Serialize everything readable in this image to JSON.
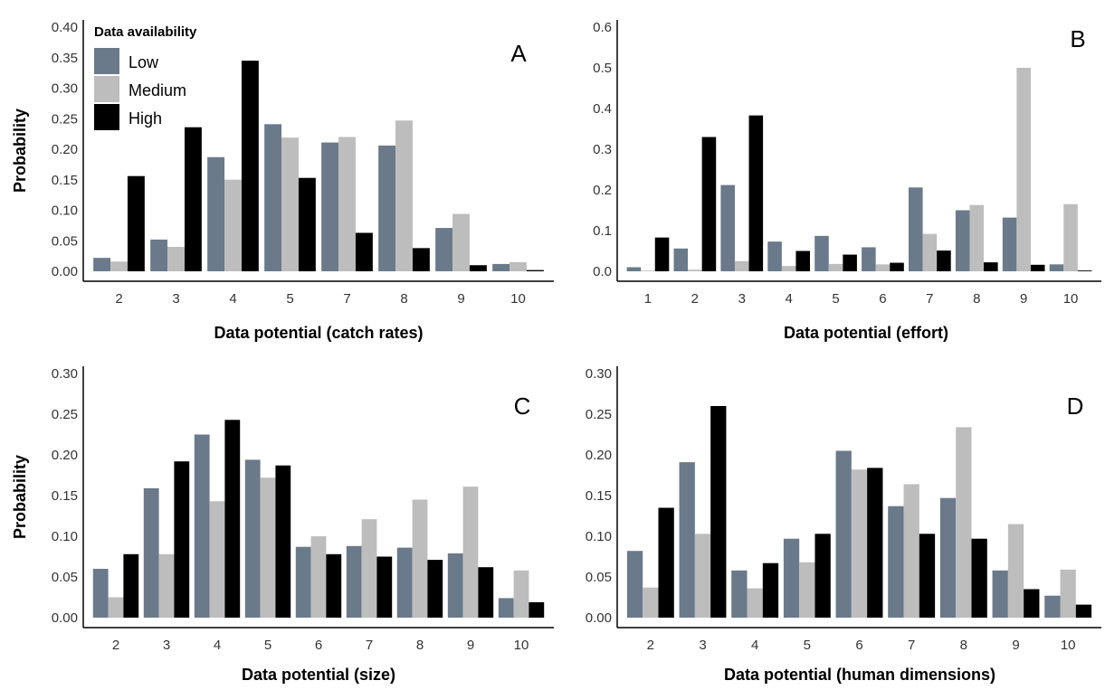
{
  "legend": {
    "title": "Data availability",
    "entries": [
      {
        "label": "Low",
        "color": "#6a7a8a"
      },
      {
        "label": "Medium",
        "color": "#bdbdbd"
      },
      {
        "label": "High",
        "color": "#000000"
      }
    ]
  },
  "chart_data": [
    {
      "panel": "A",
      "type": "bar",
      "xlabel": "Data potential (catch rates)",
      "ylabel": "Probability",
      "ylim": [
        0,
        0.4
      ],
      "yticks": [
        "0.00",
        "0.05",
        "0.10",
        "0.15",
        "0.20",
        "0.25",
        "0.30",
        "0.35",
        "0.40"
      ],
      "categories": [
        "2",
        "3",
        "4",
        "5",
        "7",
        "8",
        "9",
        "10"
      ],
      "series": [
        {
          "name": "Low",
          "values": [
            0.022,
            0.052,
            0.187,
            0.241,
            0.211,
            0.206,
            0.071,
            0.012
          ]
        },
        {
          "name": "Medium",
          "values": [
            0.016,
            0.04,
            0.15,
            0.219,
            0.22,
            0.247,
            0.094,
            0.015
          ]
        },
        {
          "name": "High",
          "values": [
            0.156,
            0.236,
            0.345,
            0.153,
            0.063,
            0.038,
            0.01,
            0.002
          ]
        }
      ],
      "grid": false,
      "legend_position": "top-left"
    },
    {
      "panel": "B",
      "type": "bar",
      "xlabel": "Data potential (effort)",
      "ylabel": "",
      "ylim": [
        0,
        0.6
      ],
      "yticks": [
        "0.0",
        "0.1",
        "0.2",
        "0.3",
        "0.4",
        "0.5",
        "0.6"
      ],
      "categories": [
        "1",
        "2",
        "3",
        "4",
        "5",
        "6",
        "7",
        "8",
        "9",
        "10"
      ],
      "series": [
        {
          "name": "Low",
          "values": [
            0.01,
            0.056,
            0.212,
            0.073,
            0.087,
            0.059,
            0.206,
            0.15,
            0.132,
            0.017
          ]
        },
        {
          "name": "Medium",
          "values": [
            0.0,
            0.004,
            0.025,
            0.013,
            0.018,
            0.017,
            0.092,
            0.163,
            0.5,
            0.165
          ]
        },
        {
          "name": "High",
          "values": [
            0.083,
            0.33,
            0.383,
            0.05,
            0.041,
            0.021,
            0.051,
            0.022,
            0.016,
            0.002
          ]
        }
      ],
      "grid": false
    },
    {
      "panel": "C",
      "type": "bar",
      "xlabel": "Data potential (size)",
      "ylabel": "Probability",
      "ylim": [
        0,
        0.3
      ],
      "yticks": [
        "0.00",
        "0.05",
        "0.10",
        "0.15",
        "0.20",
        "0.25",
        "0.30"
      ],
      "categories": [
        "2",
        "3",
        "4",
        "5",
        "6",
        "7",
        "8",
        "9",
        "10"
      ],
      "series": [
        {
          "name": "Low",
          "values": [
            0.06,
            0.159,
            0.225,
            0.194,
            0.087,
            0.088,
            0.086,
            0.079,
            0.024
          ]
        },
        {
          "name": "Medium",
          "values": [
            0.025,
            0.078,
            0.143,
            0.172,
            0.1,
            0.121,
            0.145,
            0.161,
            0.058
          ]
        },
        {
          "name": "High",
          "values": [
            0.078,
            0.192,
            0.243,
            0.187,
            0.078,
            0.075,
            0.071,
            0.062,
            0.019
          ]
        }
      ],
      "grid": false
    },
    {
      "panel": "D",
      "type": "bar",
      "xlabel": "Data potential (human dimensions)",
      "ylabel": "",
      "ylim": [
        0,
        0.3
      ],
      "yticks": [
        "0.00",
        "0.05",
        "0.10",
        "0.15",
        "0.20",
        "0.25",
        "0.30"
      ],
      "categories": [
        "2",
        "3",
        "4",
        "5",
        "6",
        "7",
        "8",
        "9",
        "10"
      ],
      "series": [
        {
          "name": "Low",
          "values": [
            0.082,
            0.191,
            0.058,
            0.097,
            0.205,
            0.137,
            0.147,
            0.058,
            0.027
          ]
        },
        {
          "name": "Medium",
          "values": [
            0.037,
            0.103,
            0.036,
            0.068,
            0.182,
            0.164,
            0.234,
            0.115,
            0.059
          ]
        },
        {
          "name": "High",
          "values": [
            0.135,
            0.26,
            0.067,
            0.103,
            0.184,
            0.103,
            0.097,
            0.035,
            0.016
          ]
        }
      ],
      "grid": false
    }
  ]
}
